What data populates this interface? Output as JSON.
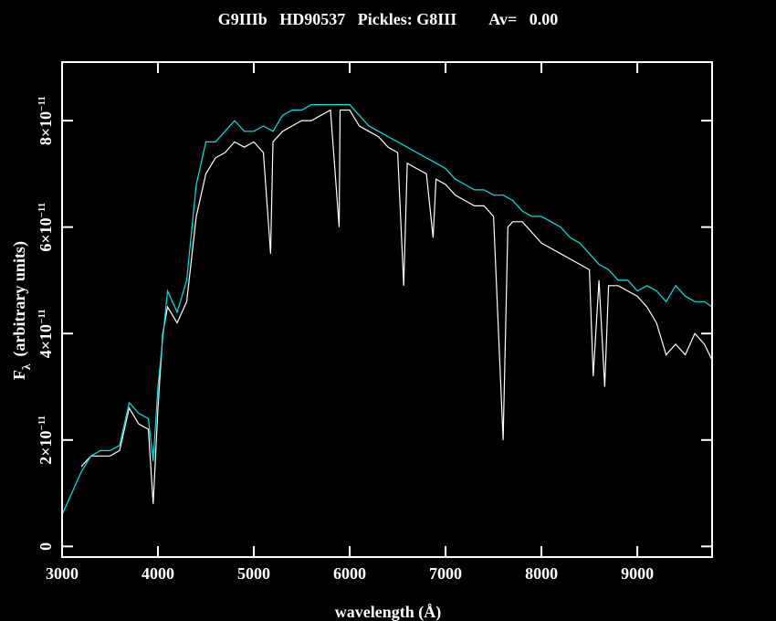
{
  "chart_data": {
    "type": "line",
    "title": "G9IIIb   HD90537   Pickles: G8III        Av=   0.00",
    "xlabel": "wavelength (Å)",
    "ylabel": "F",
    "ylabel_sub": "λ",
    "ylabel_rest": "(arbitrary units)",
    "xlim": [
      3000,
      9780
    ],
    "ylim": [
      -2e-12,
      9.1e-11
    ],
    "xticks": [
      3000,
      4000,
      5000,
      6000,
      7000,
      8000,
      9000
    ],
    "yticks": [
      0,
      {
        "value": 2e-11,
        "label": "2×10",
        "exponent": "−11"
      },
      {
        "value": 4e-11,
        "label": "4×10",
        "exponent": "−11"
      },
      {
        "value": 6e-11,
        "label": "6×10",
        "exponent": "−11"
      },
      {
        "value": 8e-11,
        "label": "8×10",
        "exponent": "−11"
      }
    ],
    "series": [
      {
        "color": "#ffffff",
        "x": [
          3200,
          3300,
          3400,
          3500,
          3600,
          3700,
          3800,
          3900,
          3950,
          4000,
          4050,
          4100,
          4200,
          4300,
          4400,
          4500,
          4600,
          4700,
          4800,
          4900,
          5000,
          5100,
          5175,
          5200,
          5300,
          5400,
          5500,
          5600,
          5700,
          5800,
          5890,
          5900,
          6000,
          6100,
          6200,
          6300,
          6400,
          6500,
          6563,
          6600,
          6700,
          6800,
          6870,
          6900,
          7000,
          7100,
          7200,
          7300,
          7400,
          7500,
          7600,
          7650,
          7700,
          7800,
          7900,
          8000,
          8100,
          8200,
          8300,
          8400,
          8500,
          8540,
          8600,
          8660,
          8700,
          8800,
          8900,
          9000,
          9100,
          9200,
          9300,
          9400,
          9500,
          9600,
          9700,
          9780
        ],
        "values": [
          1.5e-11,
          1.7e-11,
          1.7e-11,
          1.7e-11,
          1.8e-11,
          2.6e-11,
          2.3e-11,
          2.2e-11,
          8e-12,
          2.6e-11,
          4e-11,
          4.5e-11,
          4.2e-11,
          4.6e-11,
          6.2e-11,
          7e-11,
          7.3e-11,
          7.4e-11,
          7.6e-11,
          7.5e-11,
          7.6e-11,
          7.4e-11,
          5.5e-11,
          7.6e-11,
          7.8e-11,
          7.9e-11,
          8e-11,
          8e-11,
          8.1e-11,
          8.2e-11,
          6e-11,
          8.2e-11,
          8.2e-11,
          7.9e-11,
          7.8e-11,
          7.7e-11,
          7.5e-11,
          7.4e-11,
          4.9e-11,
          7.2e-11,
          7.1e-11,
          7e-11,
          5.8e-11,
          6.9e-11,
          6.8e-11,
          6.6e-11,
          6.5e-11,
          6.4e-11,
          6.4e-11,
          6.2e-11,
          2e-11,
          6e-11,
          6.1e-11,
          6.1e-11,
          5.9e-11,
          5.7e-11,
          5.6e-11,
          5.5e-11,
          5.4e-11,
          5.3e-11,
          5.2e-11,
          3.2e-11,
          5e-11,
          3e-11,
          4.9e-11,
          4.9e-11,
          4.8e-11,
          4.7e-11,
          4.5e-11,
          4.2e-11,
          3.6e-11,
          3.8e-11,
          3.6e-11,
          4e-11,
          3.8e-11,
          3.5e-11
        ]
      },
      {
        "color": "#00e5e5",
        "x": [
          3000,
          3100,
          3200,
          3300,
          3400,
          3500,
          3600,
          3700,
          3800,
          3900,
          3950,
          4000,
          4100,
          4200,
          4300,
          4400,
          4500,
          4600,
          4700,
          4800,
          4900,
          5000,
          5100,
          5200,
          5300,
          5400,
          5500,
          5600,
          5700,
          5800,
          5900,
          6000,
          6100,
          6200,
          6300,
          6400,
          6500,
          6600,
          6700,
          6800,
          6900,
          7000,
          7100,
          7200,
          7300,
          7400,
          7500,
          7600,
          7700,
          7800,
          7900,
          8000,
          8100,
          8200,
          8300,
          8400,
          8500,
          8600,
          8700,
          8800,
          8900,
          9000,
          9100,
          9200,
          9300,
          9400,
          9500,
          9600,
          9700,
          9780
        ],
        "values": [
          6e-12,
          1e-11,
          1.4e-11,
          1.7e-11,
          1.8e-11,
          1.8e-11,
          1.9e-11,
          2.7e-11,
          2.5e-11,
          2.4e-11,
          1.6e-11,
          3e-11,
          4.8e-11,
          4.4e-11,
          5e-11,
          6.8e-11,
          7.6e-11,
          7.6e-11,
          7.8e-11,
          8e-11,
          7.8e-11,
          7.8e-11,
          7.9e-11,
          7.8e-11,
          8.1e-11,
          8.2e-11,
          8.2e-11,
          8.3e-11,
          8.3e-11,
          8.3e-11,
          8.3e-11,
          8.3e-11,
          8.1e-11,
          7.9e-11,
          7.8e-11,
          7.7e-11,
          7.6e-11,
          7.5e-11,
          7.4e-11,
          7.3e-11,
          7.2e-11,
          7.1e-11,
          6.9e-11,
          6.8e-11,
          6.7e-11,
          6.7e-11,
          6.6e-11,
          6.6e-11,
          6.5e-11,
          6.3e-11,
          6.2e-11,
          6.2e-11,
          6.1e-11,
          6e-11,
          5.8e-11,
          5.7e-11,
          5.5e-11,
          5.3e-11,
          5.2e-11,
          5e-11,
          5e-11,
          4.8e-11,
          4.9e-11,
          4.8e-11,
          4.6e-11,
          4.9e-11,
          4.7e-11,
          4.6e-11,
          4.6e-11,
          4.5e-11
        ]
      }
    ]
  }
}
